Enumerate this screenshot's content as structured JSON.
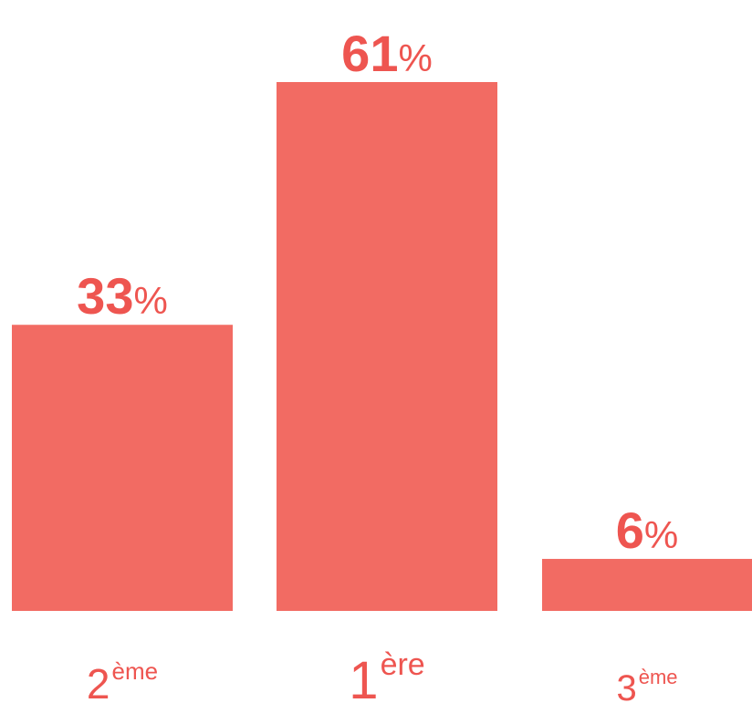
{
  "chart_data": {
    "type": "bar",
    "categories": [
      {
        "main": "2",
        "sup": "ème"
      },
      {
        "main": "1",
        "sup": "ère"
      },
      {
        "main": "3",
        "sup": "ème"
      }
    ],
    "values": [
      33,
      61,
      6
    ],
    "value_suffix": "%",
    "ylim": [
      0,
      61
    ],
    "grid": false,
    "legend": "none",
    "colors": {
      "bar": "#F26B63",
      "text": "#EE5550"
    }
  }
}
